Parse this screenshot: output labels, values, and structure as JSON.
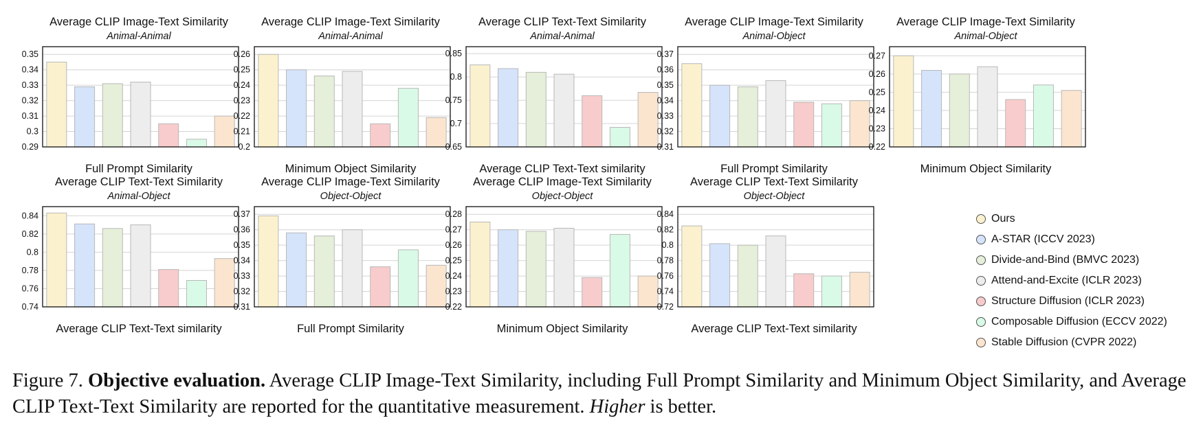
{
  "legend": [
    {
      "name": "Ours",
      "venue": "",
      "color": "#FCF1CE"
    },
    {
      "name": "A-STAR",
      "venue": "(ICCV 2023)",
      "color": "#D5E3FB"
    },
    {
      "name": "Divide-and-Bind",
      "venue": "(BMVC 2023)",
      "color": "#E5EFD9"
    },
    {
      "name": "Attend-and-Excite",
      "venue": "(ICLR 2023)",
      "color": "#EDEDED"
    },
    {
      "name": "Structure Diffusion",
      "venue": "(ICLR 2023)",
      "color": "#F8CCCC"
    },
    {
      "name": "Composable Diffusion",
      "venue": "(ECCV 2022)",
      "color": "#D9FAE6"
    },
    {
      "name": "Stable Diffusion",
      "venue": "(CVPR 2022)",
      "color": "#FBE5CF"
    }
  ],
  "chart_data": [
    {
      "type": "bar",
      "title": "Average CLIP Image-Text Similarity",
      "subtitle": "Animal-Animal",
      "xlabel": "Full Prompt Similarity",
      "ylim": [
        0.29,
        0.355
      ],
      "yticks": [
        "0.29",
        "0.3",
        "0.31",
        "0.32",
        "0.33",
        "0.34",
        "0.35"
      ],
      "values": [
        0.345,
        0.329,
        0.331,
        0.332,
        0.305,
        0.295,
        0.31
      ]
    },
    {
      "type": "bar",
      "title": "Average CLIP Image-Text Similarity",
      "subtitle": "Animal-Animal",
      "xlabel": "Minimum Object Similarity",
      "ylim": [
        0.2,
        0.265
      ],
      "yticks": [
        "0.2",
        "0.21",
        "0.22",
        "0.23",
        "0.24",
        "0.25",
        "0.26"
      ],
      "values": [
        0.26,
        0.25,
        0.246,
        0.249,
        0.215,
        0.238,
        0.219
      ]
    },
    {
      "type": "bar",
      "title": "Average CLIP Text-Text Similarity",
      "subtitle": "Animal-Animal",
      "xlabel": "Average CLIP Text-Text similarity",
      "ylim": [
        0.65,
        0.865
      ],
      "yticks": [
        "0.65",
        "0.7",
        "0.75",
        "0.8",
        "0.85"
      ],
      "values": [
        0.826,
        0.818,
        0.81,
        0.806,
        0.76,
        0.692,
        0.767
      ]
    },
    {
      "type": "bar",
      "title": "Average CLIP Image-Text Similarity",
      "subtitle": "Animal-Object",
      "xlabel": "Full Prompt Similarity",
      "ylim": [
        0.31,
        0.375
      ],
      "yticks": [
        "0.31",
        "0.32",
        "0.33",
        "0.34",
        "0.35",
        "0.36",
        "0.37"
      ],
      "values": [
        0.364,
        0.35,
        0.349,
        0.353,
        0.339,
        0.338,
        0.34
      ]
    },
    {
      "type": "bar",
      "title": "Average CLIP Image-Text Similarity",
      "subtitle": "Animal-Object",
      "xlabel": "Minimum Object Similarity",
      "ylim": [
        0.22,
        0.275
      ],
      "yticks": [
        "0.22",
        "0.23",
        "0.24",
        "0.25",
        "0.26",
        "0.27"
      ],
      "values": [
        0.27,
        0.262,
        0.26,
        0.264,
        0.246,
        0.254,
        0.251
      ]
    },
    {
      "type": "bar",
      "title": "Average CLIP Text-Text Similarity",
      "subtitle": "Animal-Object",
      "xlabel": "Average CLIP Text-Text similarity",
      "ylim": [
        0.74,
        0.85
      ],
      "yticks": [
        "0.74",
        "0.76",
        "0.78",
        "0.8",
        "0.82",
        "0.84"
      ],
      "values": [
        0.843,
        0.831,
        0.826,
        0.83,
        0.781,
        0.769,
        0.793
      ]
    },
    {
      "type": "bar",
      "title": "Average CLIP Image-Text Similarity",
      "subtitle": "Object-Object",
      "xlabel": "Full Prompt Similarity",
      "ylim": [
        0.31,
        0.375
      ],
      "yticks": [
        "0.31",
        "0.32",
        "0.33",
        "0.34",
        "0.35",
        "0.36",
        "0.37"
      ],
      "values": [
        0.369,
        0.358,
        0.356,
        0.36,
        0.336,
        0.347,
        0.337
      ]
    },
    {
      "type": "bar",
      "title": "Average CLIP Image-Text Similarity",
      "subtitle": "Object-Object",
      "xlabel": "Minimum Object Similarity",
      "ylim": [
        0.22,
        0.285
      ],
      "yticks": [
        "0.22",
        "0.23",
        "0.24",
        "0.25",
        "0.26",
        "0.27",
        "0.28"
      ],
      "values": [
        0.275,
        0.27,
        0.269,
        0.271,
        0.239,
        0.267,
        0.24
      ]
    },
    {
      "type": "bar",
      "title": "Average CLIP Text-Text Similarity",
      "subtitle": "Object-Object",
      "xlabel": "Average CLIP Text-Text similarity",
      "ylim": [
        0.72,
        0.85
      ],
      "yticks": [
        "0.72",
        "0.74",
        "0.76",
        "0.78",
        "0.8",
        "0.82",
        "0.84"
      ],
      "values": [
        0.825,
        0.802,
        0.8,
        0.812,
        0.763,
        0.76,
        0.765
      ]
    }
  ],
  "caption": {
    "prefix": "Figure 7.",
    "bold": "Objective evaluation.",
    "text1": "Average CLIP Image-Text Similarity, including Full Prompt Similarity and Minimum Object Similarity, and Average CLIP Text-Text Similarity are reported for the quantitative measurement.",
    "italic": "Higher",
    "text2": "is better."
  }
}
